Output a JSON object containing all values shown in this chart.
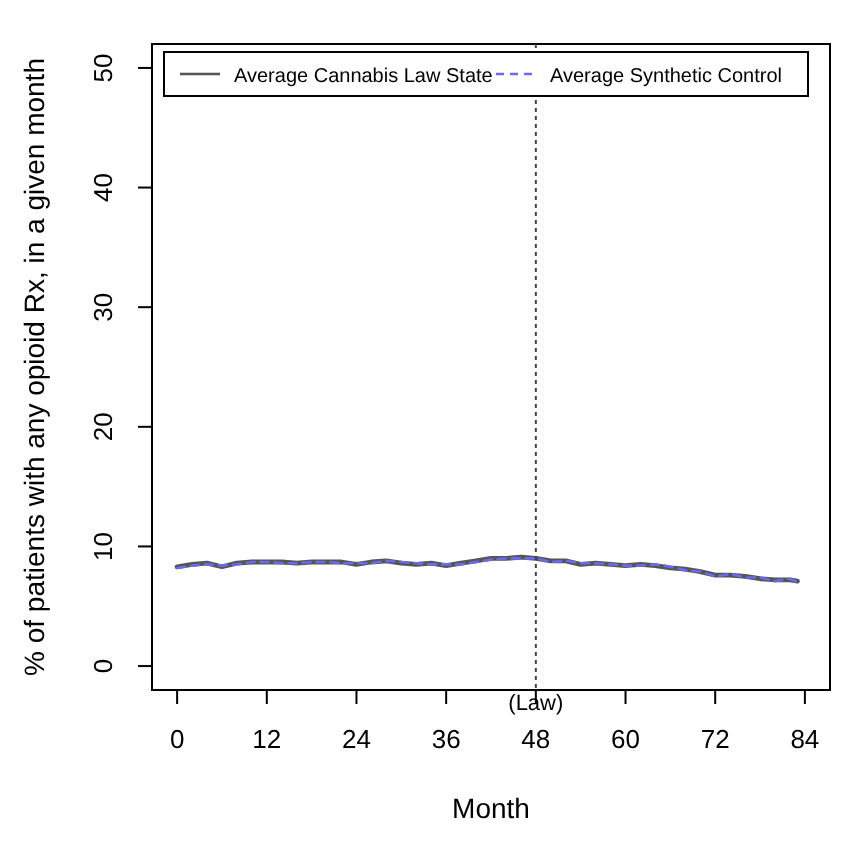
{
  "chart_data": {
    "type": "line",
    "xlabel": "Month",
    "ylabel": "% of patients with any opioid Rx, in a given month",
    "x": [
      0,
      2,
      4,
      6,
      8,
      10,
      12,
      14,
      16,
      18,
      20,
      22,
      24,
      26,
      28,
      30,
      32,
      34,
      36,
      38,
      40,
      42,
      44,
      46,
      48,
      50,
      52,
      54,
      56,
      58,
      60,
      62,
      64,
      66,
      68,
      70,
      72,
      74,
      76,
      78,
      80,
      82,
      83
    ],
    "series": [
      {
        "name": "Average Cannabis Law State",
        "color": "#555555",
        "line_style": "solid",
        "values": [
          8.3,
          8.5,
          8.6,
          8.3,
          8.6,
          8.7,
          8.7,
          8.7,
          8.6,
          8.7,
          8.7,
          8.7,
          8.5,
          8.7,
          8.8,
          8.6,
          8.5,
          8.6,
          8.4,
          8.6,
          8.8,
          9.0,
          9.0,
          9.1,
          9.0,
          8.8,
          8.8,
          8.5,
          8.6,
          8.5,
          8.4,
          8.5,
          8.4,
          8.2,
          8.1,
          7.9,
          7.6,
          7.6,
          7.5,
          7.3,
          7.2,
          7.2,
          7.1
        ]
      },
      {
        "name": "Average Synthetic Control",
        "color": "#6a6af0",
        "line_style": "dashed",
        "values": [
          8.2,
          8.4,
          8.5,
          8.4,
          8.5,
          8.7,
          8.7,
          8.6,
          8.6,
          8.7,
          8.7,
          8.6,
          8.6,
          8.6,
          8.8,
          8.7,
          8.6,
          8.5,
          8.5,
          8.5,
          8.7,
          8.9,
          9.0,
          9.0,
          9.0,
          8.7,
          8.8,
          8.6,
          8.6,
          8.5,
          8.4,
          8.4,
          8.5,
          8.3,
          8.0,
          7.9,
          7.5,
          7.7,
          7.4,
          7.4,
          7.1,
          7.3,
          7.0
        ]
      }
    ],
    "xlim": [
      -3.36,
      87.36
    ],
    "xticks": [
      0,
      12,
      24,
      36,
      48,
      60,
      72,
      84
    ],
    "ylim": [
      -2,
      52
    ],
    "yticks": [
      0,
      10,
      20,
      30,
      40,
      50
    ],
    "ref_lines": [
      {
        "axis": "x",
        "value": 48,
        "label": "(Law)",
        "line_style": "dotted",
        "color": "#444444"
      }
    ],
    "legend": "top",
    "grid": false
  }
}
